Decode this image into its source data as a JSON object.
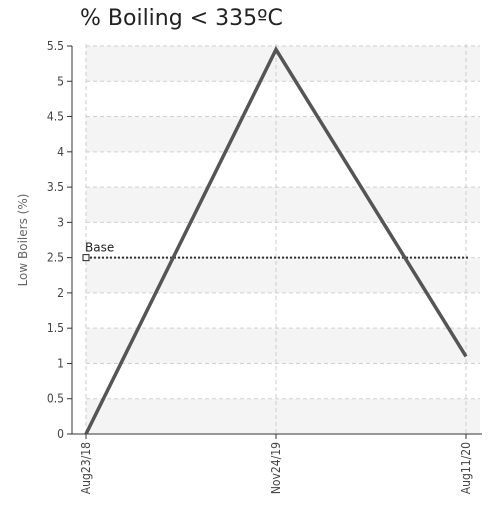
{
  "chart_data": {
    "type": "line",
    "title": "% Boiling < 335ºC",
    "ylabel": "Low Boilers (%)",
    "xlabel": "",
    "ylim": [
      0,
      5.5
    ],
    "yticks": [
      "0",
      "0.5",
      "1",
      "1.5",
      "2",
      "2.5",
      "3",
      "3.5",
      "4",
      "4.5",
      "5",
      "5.5"
    ],
    "categories": [
      "Aug23/18",
      "Nov24/19",
      "Aug11/20"
    ],
    "series": [
      {
        "values": [
          0,
          5.45,
          1.1
        ],
        "color": "#555555"
      }
    ],
    "reference_line": {
      "label": "Base",
      "value": 2.5,
      "color": "#333333",
      "style": "dotted"
    },
    "grid": true,
    "band_colors": [
      "#f4f4f4",
      "#ffffff"
    ]
  }
}
